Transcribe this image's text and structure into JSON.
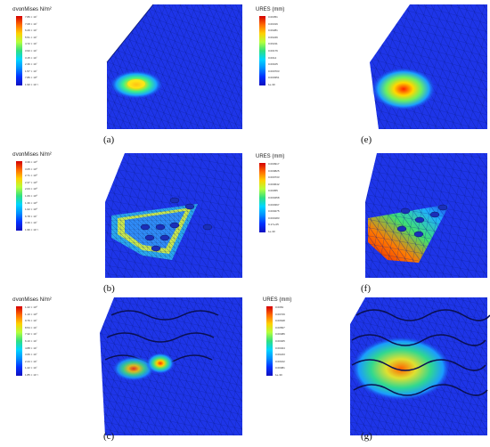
{
  "figure": {
    "panels": [
      {
        "id": "a",
        "caption": "(a)",
        "legend_title": "σvonMises N/m²",
        "ticks": [
          "7.86 × 10⁷",
          "7.08 × 10⁷",
          "6.29 × 10⁷",
          "5.51 × 10⁷",
          "4.72 × 10⁷",
          "3.93 × 10⁷",
          "3.15 × 10⁷",
          "2.36 × 10⁷",
          "1.57 × 10⁷",
          "7.86 × 10⁶",
          "1.90 × 10⁻¹"
        ],
        "colormap": "jet"
      },
      {
        "id": "b",
        "caption": "(b)",
        "legend_title": "σvonMises N/m²",
        "ticks": [
          "3.39 × 10⁸",
          "3.05 × 10⁸",
          "2.71 × 10⁸",
          "2.37 × 10⁸",
          "2.03 × 10⁸",
          "1.69 × 10⁸",
          "1.36 × 10⁸",
          "1.02 × 10⁸",
          "6.78 × 10⁷",
          "3.39 × 10⁷",
          "1.96 × 10⁻¹"
        ],
        "colormap": "jet"
      },
      {
        "id": "c",
        "caption": "(c)",
        "legend_title": "σvonMises N/m²",
        "ticks": [
          "1.22 × 10⁸",
          "1.10 × 10⁸",
          "9.76 × 10⁷",
          "8.54 × 10⁷",
          "7.32 × 10⁷",
          "6.10 × 10⁷",
          "4.88 × 10⁷",
          "3.66 × 10⁷",
          "2.44 × 10⁷",
          "1.22 × 10⁷",
          "1.85 × 10⁻¹"
        ],
        "colormap": "jet"
      },
      {
        "id": "e",
        "caption": "(e)",
        "legend_title": "URES (mm)",
        "ticks": [
          "0.00351",
          "0.00316",
          "0.00281",
          "0.00246",
          "0.00211",
          "0.00176",
          "0.0014",
          "0.00105",
          "0.000703",
          "0.000351",
          "1e-30"
        ],
        "colormap": "jet"
      },
      {
        "id": "f",
        "caption": "(f)",
        "legend_title": "URES (mm)",
        "ticks": [
          "0.000917",
          "0.000825",
          "0.000733",
          "0.000642",
          "0.00055",
          "0.000458",
          "0.000367",
          "0.000275",
          "0.000183",
          "9.17e-05",
          "1e-30"
        ],
        "colormap": "jet"
      },
      {
        "id": "g",
        "caption": "(g)",
        "legend_title": "URES (mm)",
        "ticks": [
          "0.0081",
          "0.00729",
          "0.00648",
          "0.00567",
          "0.00486",
          "0.00405",
          "0.00324",
          "0.00243",
          "0.00162",
          "0.00081",
          "1e-30"
        ],
        "colormap": "jet"
      }
    ]
  }
}
